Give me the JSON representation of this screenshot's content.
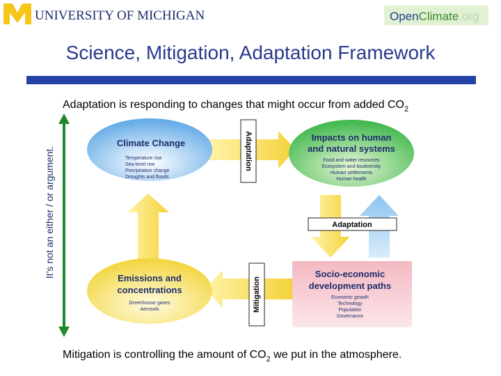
{
  "header": {
    "university": "UNIVERSITY OF MICHIGAN",
    "site": {
      "part1": "Open",
      "part2": "Climate",
      "part3": ".org"
    }
  },
  "title": "Science, Mitigation, Adaptation Framework",
  "top_caption": {
    "text": "Adaptation is responding to changes that might occur from added CO",
    "subscript": "2"
  },
  "side_caption": "It’s not an either / or argument.",
  "nodes": [
    {
      "label": "Climate Change",
      "items": [
        "Temperature rise",
        "Sea-level rise",
        "Precipitation change",
        "Droughts and floods"
      ]
    },
    {
      "label": [
        "Impacts on human",
        "and natural systems"
      ],
      "items": [
        "Food and water resources",
        "Ecosystem and biodiversity",
        "Human settlements",
        "Human health"
      ]
    },
    {
      "label": [
        "Emissions and",
        "concentrations"
      ],
      "items": [
        "Greenhouse gases",
        "Aerosols"
      ]
    },
    {
      "label": [
        "Socio-economic",
        "development paths"
      ],
      "items": [
        "Economic growth",
        "Technology",
        "Population",
        "Governance"
      ]
    }
  ],
  "links": {
    "adaptation_vertical": "Adaptation",
    "adaptation_horizontal": "Adaptation",
    "mitigation": "Mitigation"
  },
  "bottom_caption": {
    "before": "Mitigation is controlling the amount of CO",
    "subscript": "2",
    "after": " we put in the atmosphere."
  }
}
